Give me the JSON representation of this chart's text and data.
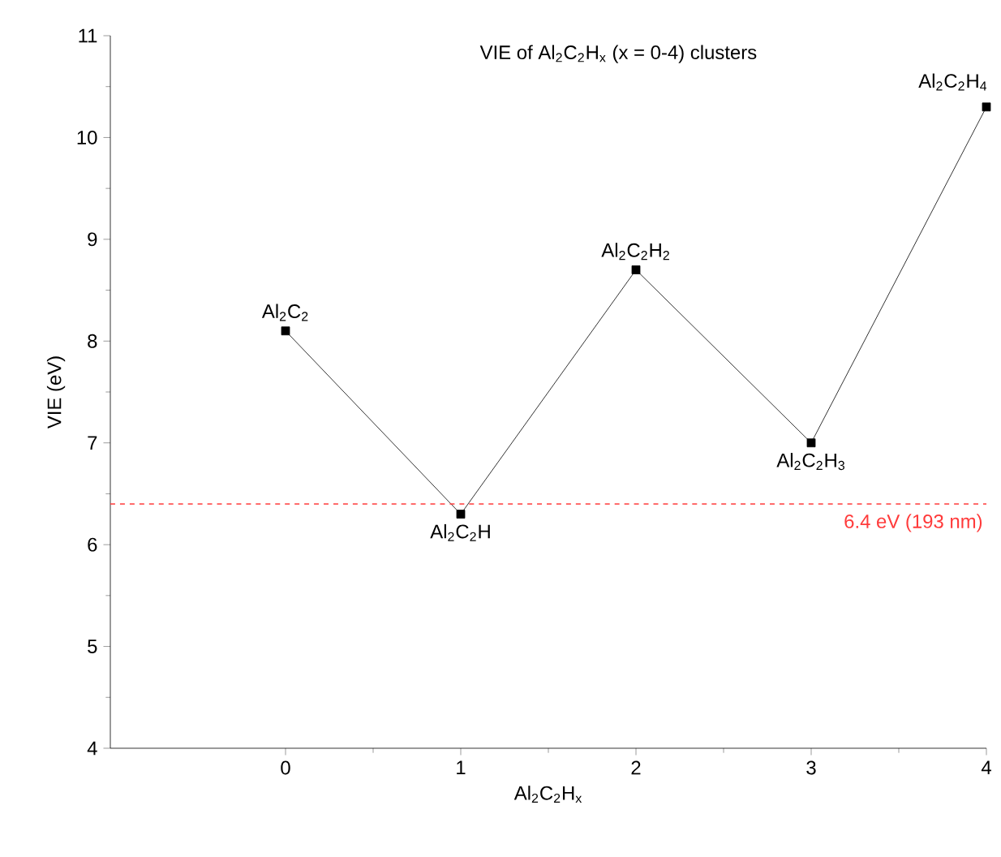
{
  "chart_data": {
    "type": "line",
    "title": "VIE of Al$_{2}$C$_{2}$H$_{x}$  (x = 0-4) clusters",
    "xlabel": "Al$_{2}$C$_{2}$H$_{x}$",
    "ylabel": "VIE (eV)",
    "categories": [
      "0",
      "1",
      "2",
      "3",
      "4"
    ],
    "series": [
      {
        "color": "#000000",
        "values": [
          8.1,
          6.3,
          8.7,
          7.0,
          10.3
        ]
      }
    ],
    "ylim": [
      4,
      11
    ],
    "yticks": [
      4,
      5,
      6,
      7,
      8,
      9,
      10,
      11
    ],
    "marker": "square",
    "line_style": "solid",
    "grid": false,
    "ref_lines": [
      {
        "axis": "y",
        "value": 6.4,
        "label": "6.4 eV (193 nm)",
        "color": "#ff3b3b",
        "line_style": "dashed"
      }
    ],
    "annotations": [
      {
        "text": "Al$_{2}$C$_{2}$",
        "x": "0",
        "y": 8.1
      },
      {
        "text": "Al$_{2}$C$_{2}$H",
        "x": "1",
        "y": 6.3
      },
      {
        "text": "Al$_{2}$C$_{2}$H$_{2}$",
        "x": "2",
        "y": 8.7
      },
      {
        "text": "Al$_{2}$C$_{2}$H$_{3}$",
        "x": "3",
        "y": 7.0
      },
      {
        "text": "Al$_{2}$C$_{2}$H$_{4}$",
        "x": "4",
        "y": 10.3
      }
    ]
  }
}
